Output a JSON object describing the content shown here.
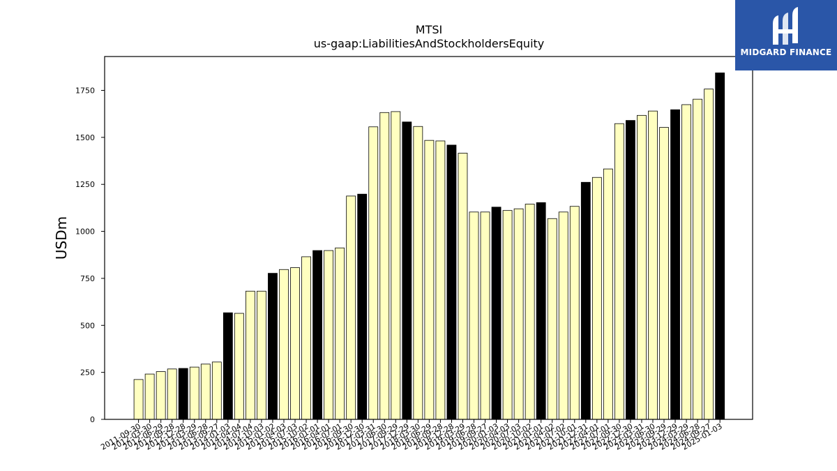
{
  "chart_data": {
    "type": "bar",
    "title": "MTSI",
    "subtitle": "us-gaap:LiabilitiesAndStockholdersEquity",
    "xlabel": "",
    "ylabel": "USDm",
    "ylim": [
      0,
      1930
    ],
    "yticks": [
      0,
      250,
      500,
      750,
      1000,
      1250,
      1500,
      1750
    ],
    "grid": false,
    "colors": {
      "normal": "#ffffc0",
      "highlight": "#000000",
      "edge": "#000000"
    },
    "categories": [
      "2011-09-30",
      "2012-03-30",
      "2012-06-29",
      "2012-09-28",
      "2012-12-28",
      "2013-03-29",
      "2013-06-28",
      "2013-09-27",
      "2014-01-03",
      "2014-04-04",
      "2014-07-04",
      "2014-10-03",
      "2015-01-02",
      "2015-04-03",
      "2015-07-03",
      "2015-10-02",
      "2016-01-01",
      "2016-04-01",
      "2016-07-01",
      "2016-09-30",
      "2016-12-30",
      "2017-03-31",
      "2017-06-30",
      "2017-09-29",
      "2017-12-29",
      "2018-03-30",
      "2018-06-29",
      "2018-09-28",
      "2018-12-28",
      "2019-03-29",
      "2019-06-28",
      "2019-09-27",
      "2020-01-03",
      "2020-04-03",
      "2020-07-03",
      "2020-10-02",
      "2021-01-01",
      "2021-04-02",
      "2021-07-02",
      "2021-10-01",
      "2021-12-31",
      "2022-04-01",
      "2022-07-01",
      "2022-09-30",
      "2022-12-30",
      "2023-03-31",
      "2023-06-30",
      "2023-09-29",
      "2023-12-29",
      "2024-03-29",
      "2024-06-28",
      "2024-09-27",
      "2025-01-03"
    ],
    "values": [
      212,
      241,
      254,
      268,
      271,
      278,
      294,
      305,
      567,
      564,
      682,
      682,
      777,
      797,
      807,
      865,
      898,
      898,
      912,
      1188,
      1198,
      1556,
      1632,
      1637,
      1582,
      1558,
      1484,
      1481,
      1459,
      1416,
      1103,
      1103,
      1129,
      1111,
      1120,
      1145,
      1153,
      1068,
      1103,
      1133,
      1261,
      1287,
      1332,
      1573,
      1590,
      1617,
      1640,
      1553,
      1647,
      1674,
      1703,
      1757,
      1843
    ],
    "highlight": [
      false,
      false,
      false,
      false,
      true,
      false,
      false,
      false,
      true,
      false,
      false,
      false,
      true,
      false,
      false,
      false,
      true,
      false,
      false,
      false,
      true,
      false,
      false,
      false,
      true,
      false,
      false,
      false,
      true,
      false,
      false,
      false,
      true,
      false,
      false,
      false,
      true,
      false,
      false,
      false,
      true,
      false,
      false,
      false,
      true,
      false,
      false,
      false,
      true,
      false,
      false,
      false,
      true
    ]
  },
  "logo": {
    "text": "MIDGARD FINANCE",
    "color": "#2a56a8"
  }
}
